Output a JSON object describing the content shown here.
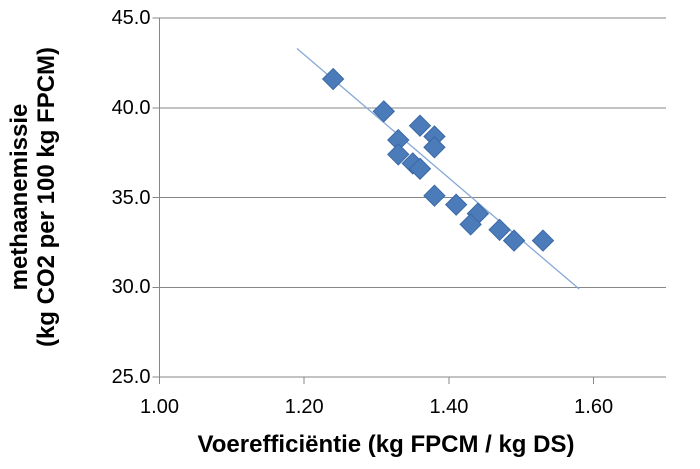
{
  "chart_data": {
    "type": "scatter",
    "title": "",
    "xlabel": "Voerefficiëntie (kg FPCM / kg DS)",
    "ylabel_lines": [
      "methaanemissie",
      "(kg CO2 per 100 kg FPCM)"
    ],
    "xlim": [
      1.0,
      1.7
    ],
    "ylim": [
      25.0,
      45.0
    ],
    "x_tick_step": 0.2,
    "y_tick_step": 5.0,
    "x_ticks": [
      {
        "v": 1.0,
        "label": "1.00"
      },
      {
        "v": 1.2,
        "label": "1.20"
      },
      {
        "v": 1.4,
        "label": "1.40"
      },
      {
        "v": 1.6,
        "label": "1.60"
      }
    ],
    "y_ticks": [
      {
        "v": 25.0,
        "label": "25.0"
      },
      {
        "v": 30.0,
        "label": "30.0"
      },
      {
        "v": 35.0,
        "label": "35.0"
      },
      {
        "v": 40.0,
        "label": "40.0"
      },
      {
        "v": 45.0,
        "label": "45.0"
      }
    ],
    "grid": {
      "horizontal": true,
      "vertical": false
    },
    "legend": "none",
    "marker": "diamond",
    "points": [
      [
        1.24,
        41.6
      ],
      [
        1.31,
        39.8
      ],
      [
        1.36,
        39.0
      ],
      [
        1.38,
        38.4
      ],
      [
        1.33,
        38.2
      ],
      [
        1.38,
        37.8
      ],
      [
        1.33,
        37.4
      ],
      [
        1.35,
        36.9
      ],
      [
        1.36,
        36.6
      ],
      [
        1.38,
        35.1
      ],
      [
        1.41,
        34.6
      ],
      [
        1.44,
        34.1
      ],
      [
        1.43,
        33.5
      ],
      [
        1.47,
        33.2
      ],
      [
        1.49,
        32.6
      ],
      [
        1.53,
        32.6
      ]
    ],
    "trendline": {
      "type": "linear",
      "x1": 1.19,
      "y1": 43.3,
      "x2": 1.58,
      "y2": 29.9
    },
    "colors": {
      "marker_fill": "#4C7BBA",
      "marker_edge": "#3A68A6",
      "trendline": "#87A9D8",
      "gridline": "#878787",
      "axis": "#878787",
      "text": "#000000"
    }
  }
}
